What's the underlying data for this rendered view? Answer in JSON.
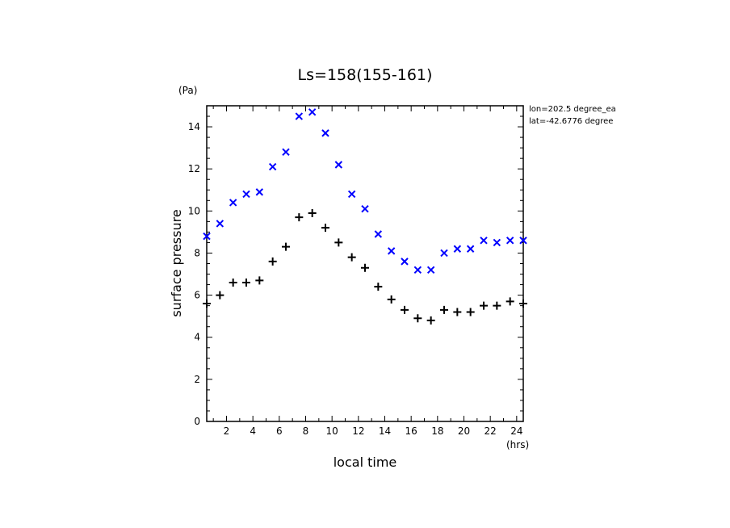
{
  "chart_data": {
    "type": "scatter",
    "title": "Ls=158(155-161)",
    "xlabel": "local time",
    "ylabel": "surface pressure",
    "xunit": "(hrs)",
    "yunit": "(Pa)",
    "xlim": [
      0.5,
      24.5
    ],
    "ylim": [
      0,
      15
    ],
    "xticks": [
      "2",
      "4",
      "6",
      "8",
      "10",
      "12",
      "14",
      "16",
      "18",
      "20",
      "22",
      "24"
    ],
    "yticks": [
      "0",
      "2",
      "4",
      "6",
      "8",
      "10",
      "12",
      "14"
    ],
    "grid": false,
    "info": [
      "lon=202.5 degree_ea",
      "lat=-42.6776 degree"
    ],
    "x": [
      0.5,
      1.5,
      2.5,
      3.5,
      4.5,
      5.5,
      6.5,
      7.5,
      8.5,
      9.5,
      10.5,
      11.5,
      12.5,
      13.5,
      14.5,
      15.5,
      16.5,
      17.5,
      18.5,
      19.5,
      20.5,
      21.5,
      22.5,
      23.5,
      24.5
    ],
    "series": [
      {
        "marker": "x",
        "color": "#0000ff",
        "values": [
          8.8,
          9.4,
          10.4,
          10.8,
          10.9,
          12.1,
          12.8,
          14.5,
          14.7,
          13.7,
          12.2,
          10.8,
          10.1,
          8.9,
          8.1,
          7.6,
          7.2,
          7.2,
          8.0,
          8.2,
          8.2,
          8.6,
          8.5,
          8.6,
          8.6
        ]
      },
      {
        "marker": "+",
        "color": "#000000",
        "values": [
          5.6,
          6.0,
          6.6,
          6.6,
          6.7,
          7.6,
          8.3,
          9.7,
          9.9,
          9.2,
          8.5,
          7.8,
          7.3,
          6.4,
          5.8,
          5.3,
          4.9,
          4.8,
          5.3,
          5.2,
          5.2,
          5.5,
          5.5,
          5.7,
          5.6
        ]
      }
    ]
  }
}
